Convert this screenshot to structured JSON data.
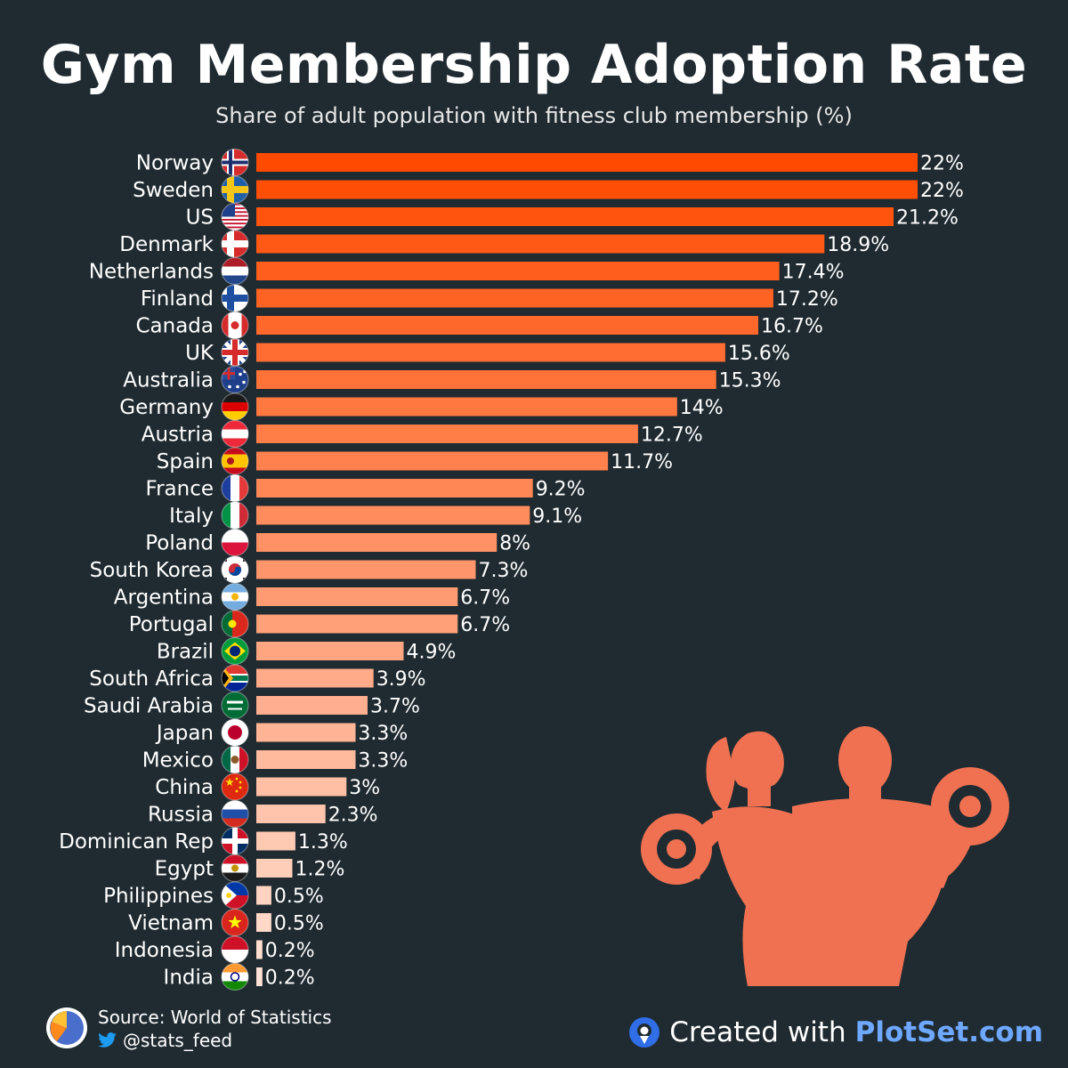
{
  "header": {
    "title": "Gym Membership Adoption Rate",
    "subtitle": "Share of adult population with fitness club membership (%)"
  },
  "footer": {
    "source": "Source: World of Statistics",
    "handle": "@stats_feed",
    "credit_prefix": "Created with",
    "credit_brand": "PlotSet.com"
  },
  "colors": {
    "background": "#1f2b31",
    "bar_max": "#ff4a00",
    "bar_min": "#ffe2d6",
    "illustration": "#f07152",
    "brand": "#6ea8ff"
  },
  "chart_data": {
    "type": "bar",
    "orientation": "horizontal",
    "unit": "%",
    "xlim": [
      0,
      22
    ],
    "grid": false,
    "categories": [
      "Norway",
      "Sweden",
      "US",
      "Denmark",
      "Netherlands",
      "Finland",
      "Canada",
      "UK",
      "Australia",
      "Germany",
      "Austria",
      "Spain",
      "France",
      "Italy",
      "Poland",
      "South Korea",
      "Argentina",
      "Portugal",
      "Brazil",
      "South Africa",
      "Saudi Arabia",
      "Japan",
      "Mexico",
      "China",
      "Russia",
      "Dominican Rep",
      "Egypt",
      "Philippines",
      "Vietnam",
      "Indonesia",
      "India"
    ],
    "values": [
      22,
      22,
      21.2,
      18.9,
      17.4,
      17.2,
      16.7,
      15.6,
      15.3,
      14,
      12.7,
      11.7,
      9.2,
      9.1,
      8,
      7.3,
      6.7,
      6.7,
      4.9,
      3.9,
      3.7,
      3.3,
      3.3,
      3,
      2.3,
      1.3,
      1.2,
      0.5,
      0.5,
      0.2,
      0.2
    ],
    "labels": [
      "22%",
      "22%",
      "21.2%",
      "18.9%",
      "17.4%",
      "17.2%",
      "16.7%",
      "15.6%",
      "15.3%",
      "14%",
      "12.7%",
      "11.7%",
      "9.2%",
      "9.1%",
      "8%",
      "7.3%",
      "6.7%",
      "6.7%",
      "4.9%",
      "3.9%",
      "3.7%",
      "3.3%",
      "3.3%",
      "3%",
      "2.3%",
      "1.3%",
      "1.2%",
      "0.5%",
      "0.5%",
      "0.2%",
      "0.2%"
    ],
    "flags": [
      {
        "type": "nordic",
        "bg": "#d62b2b",
        "cross": "#ffffff",
        "inner": "#1d2e6f"
      },
      {
        "type": "nordic",
        "bg": "#1f5fa8",
        "cross": "#f5c518"
      },
      {
        "type": "us"
      },
      {
        "type": "nordic",
        "bg": "#d62b2b",
        "cross": "#ffffff"
      },
      {
        "type": "h3",
        "colors": [
          "#ae1c28",
          "#ffffff",
          "#21468b"
        ]
      },
      {
        "type": "nordic",
        "bg": "#ffffff",
        "cross": "#1f4fa0"
      },
      {
        "type": "v3",
        "colors": [
          "#d62b2b",
          "#ffffff",
          "#d62b2b"
        ],
        "widths": [
          1,
          2,
          1
        ],
        "emblem": "#d62b2b"
      },
      {
        "type": "uk"
      },
      {
        "type": "au"
      },
      {
        "type": "h3",
        "colors": [
          "#1a1a1a",
          "#dd0000",
          "#ffce00"
        ]
      },
      {
        "type": "h3",
        "colors": [
          "#ed2939",
          "#ffffff",
          "#ed2939"
        ]
      },
      {
        "type": "h3",
        "colors": [
          "#c60b1e",
          "#ffc400",
          "#c60b1e"
        ],
        "heights": [
          1,
          2,
          1
        ],
        "emblem": "#ad1519"
      },
      {
        "type": "v3",
        "colors": [
          "#1f3f9e",
          "#ffffff",
          "#e63a3a"
        ]
      },
      {
        "type": "v3",
        "colors": [
          "#009246",
          "#ffffff",
          "#ce2b37"
        ]
      },
      {
        "type": "h2",
        "colors": [
          "#ffffff",
          "#dc143c"
        ]
      },
      {
        "type": "kr"
      },
      {
        "type": "h3",
        "colors": [
          "#74acdf",
          "#ffffff",
          "#74acdf"
        ],
        "emblem": "#f6b40e"
      },
      {
        "type": "v2",
        "colors": [
          "#046a38",
          "#da291c"
        ],
        "split": 0.4,
        "emblem": "#ffe900"
      },
      {
        "type": "br"
      },
      {
        "type": "za"
      },
      {
        "type": "sa"
      },
      {
        "type": "jp"
      },
      {
        "type": "v3",
        "colors": [
          "#006847",
          "#ffffff",
          "#ce1126"
        ],
        "emblem": "#8a5a2b"
      },
      {
        "type": "cn"
      },
      {
        "type": "h3",
        "colors": [
          "#ffffff",
          "#1f4fa8",
          "#d52b1e"
        ]
      },
      {
        "type": "do"
      },
      {
        "type": "h3",
        "colors": [
          "#ce1126",
          "#ffffff",
          "#1a1a1a"
        ],
        "emblem": "#c09300"
      },
      {
        "type": "ph"
      },
      {
        "type": "vn"
      },
      {
        "type": "h2",
        "colors": [
          "#ce1126",
          "#ffffff"
        ]
      },
      {
        "type": "in"
      }
    ]
  }
}
